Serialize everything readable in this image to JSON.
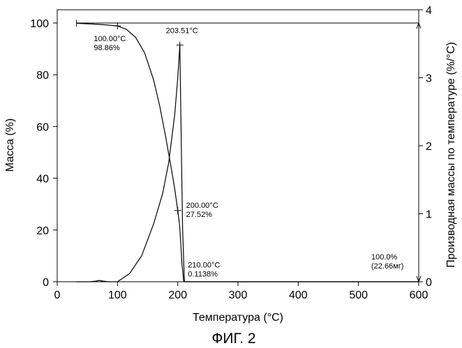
{
  "chart_data": {
    "type": "line",
    "figure_caption": "ФИГ. 2",
    "xlabel": "Температура (°C)",
    "ylabel_left": "Масса (%)",
    "ylabel_right": "Производная массы по температуре (%/°C)",
    "xlim": [
      0,
      600
    ],
    "ylim_left": [
      0,
      100
    ],
    "ylim_right": [
      0,
      4
    ],
    "x_ticks": [
      "0",
      "100",
      "200",
      "300",
      "400",
      "500",
      "600"
    ],
    "y_left_ticks": [
      "0",
      "20",
      "40",
      "60",
      "80",
      "100"
    ],
    "y_right_ticks": [
      "0",
      "1",
      "2",
      "3",
      "4"
    ],
    "grid": false,
    "series": [
      {
        "axis": "left",
        "x": [
          32,
          60,
          80,
          100,
          115,
          130,
          145,
          160,
          170,
          180,
          190,
          195,
          200,
          203,
          205,
          207,
          210,
          215,
          600
        ],
        "y": [
          99.9,
          99.6,
          99.3,
          98.86,
          97.5,
          94.5,
          88.5,
          78,
          68,
          56,
          43,
          36,
          27.52,
          22,
          15,
          7,
          0.1138,
          0,
          0
        ]
      },
      {
        "axis": "right",
        "x": [
          32,
          55,
          65,
          70,
          75,
          85,
          95,
          100,
          120,
          140,
          160,
          175,
          185,
          195,
          200,
          203.51,
          206,
          208,
          211,
          600
        ],
        "y": [
          0,
          0,
          0.01,
          0.02,
          0.01,
          0,
          0,
          0,
          0.12,
          0.38,
          0.85,
          1.3,
          1.75,
          2.45,
          3.0,
          3.48,
          2.0,
          0.8,
          0,
          0
        ]
      }
    ],
    "annotations": [
      {
        "lines": [
          "100.00°C",
          "98.86%"
        ],
        "x": 100,
        "y": 98.86,
        "axis": "left"
      },
      {
        "lines": [
          "203.51°C"
        ],
        "x": 203.51,
        "y": 3.48,
        "axis": "right"
      },
      {
        "lines": [
          "200.00°C",
          "27.52%"
        ],
        "x": 200,
        "y": 27.52,
        "axis": "left"
      },
      {
        "lines": [
          "210.00°C",
          "0.1138%"
        ],
        "x": 210,
        "y": 0.1138,
        "axis": "left"
      },
      {
        "lines": [
          "100.0%",
          "(22.66мг)"
        ],
        "x": 600,
        "y": 0,
        "axis": "left"
      }
    ]
  }
}
